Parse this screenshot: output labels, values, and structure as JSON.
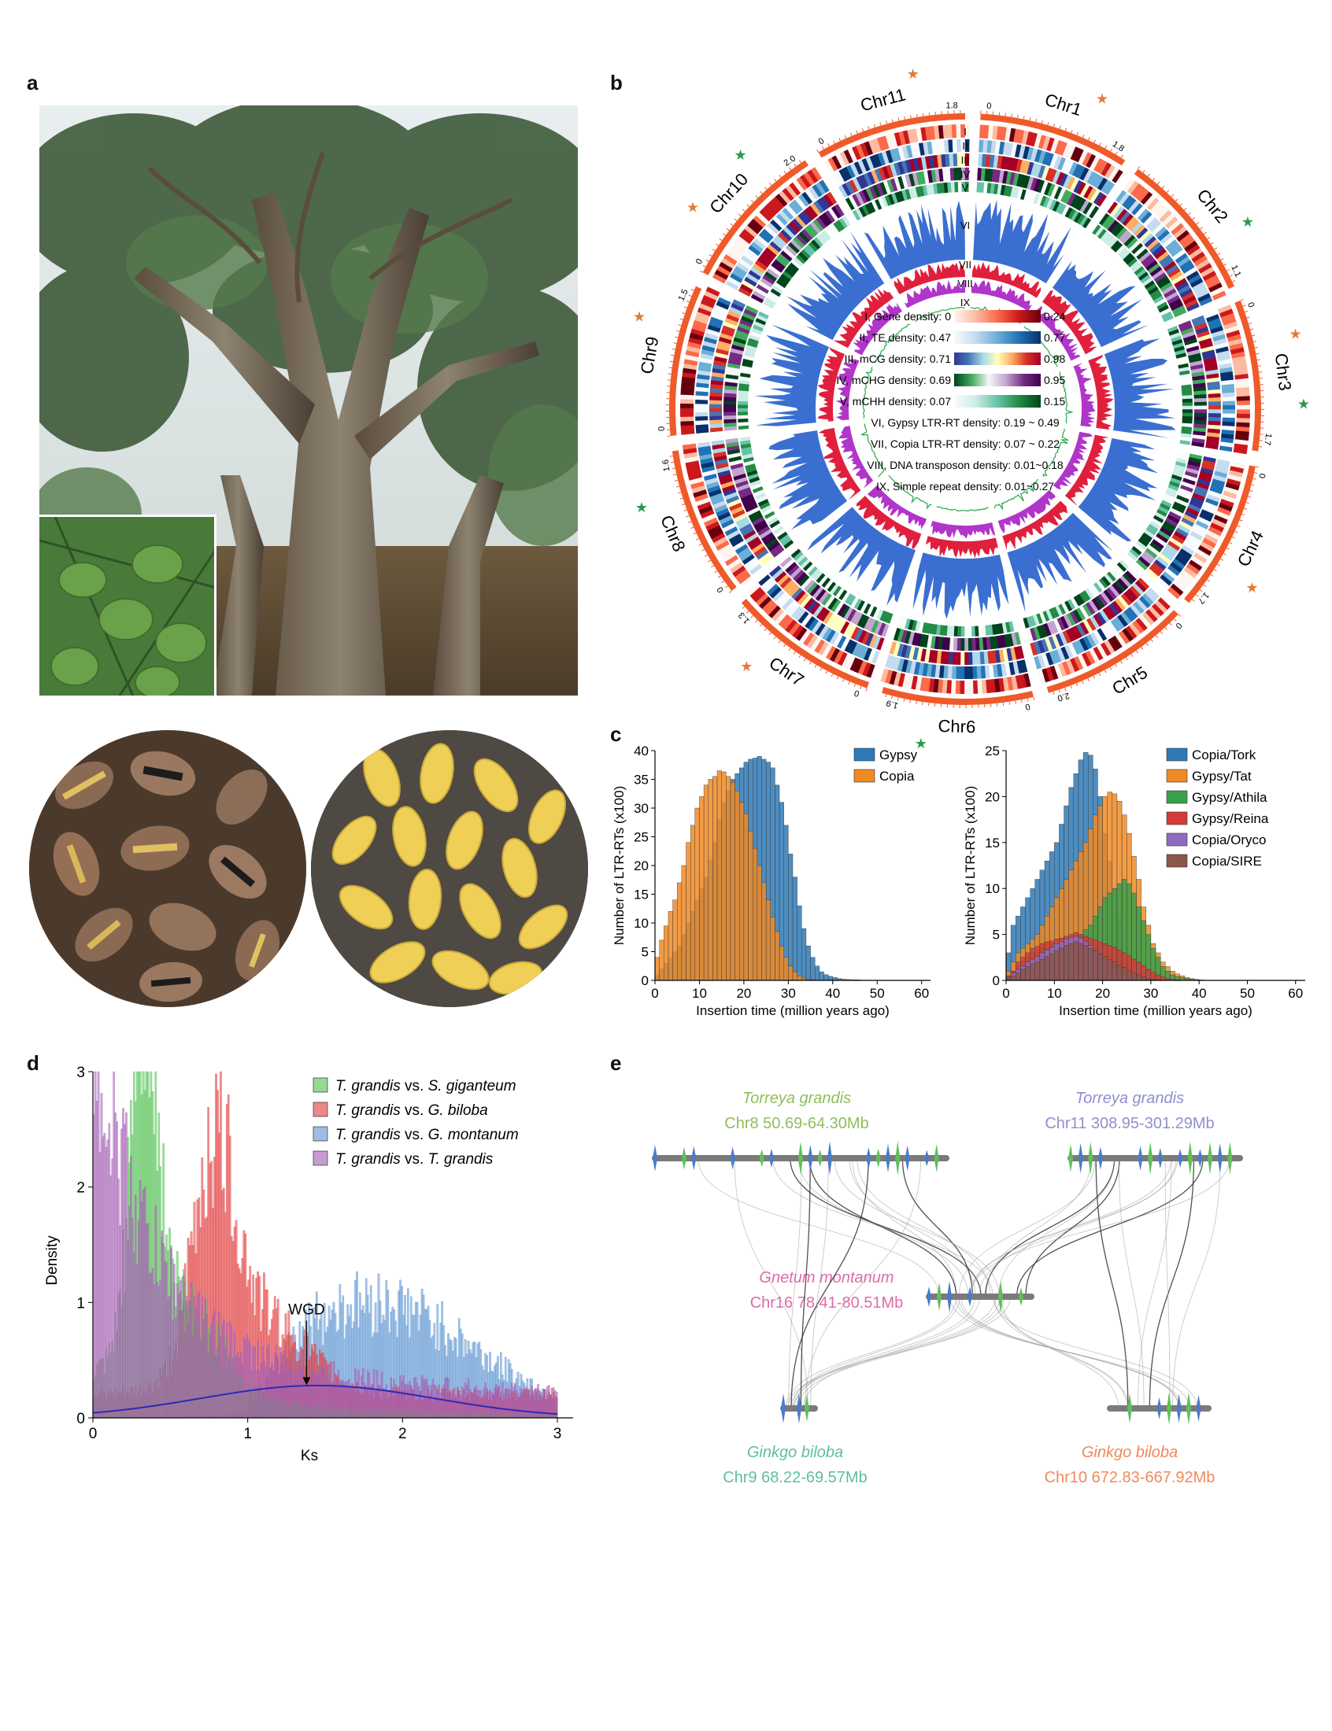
{
  "panels": {
    "a": "a",
    "b": "b",
    "c": "c",
    "d": "d",
    "e": "e"
  },
  "b": {
    "chromosomes": [
      {
        "name": "Chr1",
        "start": "0",
        "end": "1.8",
        "star": "orange"
      },
      {
        "name": "Chr2",
        "start": "",
        "end": "1.1",
        "star": "green"
      },
      {
        "name": "Chr3",
        "start": "0",
        "end": "1.7",
        "star": "both"
      },
      {
        "name": "Chr4",
        "start": "0",
        "end": "1.7",
        "star": "orange"
      },
      {
        "name": "Chr5",
        "start": "0",
        "end": "2.0",
        "star": "none"
      },
      {
        "name": "Chr6",
        "start": "0",
        "end": "1.9",
        "star": "green"
      },
      {
        "name": "Chr7",
        "start": "0",
        "end": "1.3",
        "star": "orange"
      },
      {
        "name": "Chr8",
        "start": "0",
        "end": "1.6",
        "star": "green"
      },
      {
        "name": "Chr9",
        "start": "0",
        "end": "1.5",
        "star": "orange"
      },
      {
        "name": "Chr10",
        "start": "0",
        "end": "2.0",
        "star": "both"
      },
      {
        "name": "Chr11",
        "start": "0",
        "end": "1.8",
        "star": "orange"
      }
    ],
    "track_numerals": [
      "I",
      "II",
      "III",
      "IV",
      "V",
      "VI",
      "VII",
      "VIII",
      "IX"
    ],
    "legend": [
      {
        "label": "I, Gene density: 0",
        "max": "0.24",
        "colors": [
          "#fff5f0",
          "#fcbba1",
          "#fb6a4a",
          "#cb181d",
          "#67000d"
        ]
      },
      {
        "label": "II, TE density: 0.47",
        "max": "0.77",
        "colors": [
          "#f7fbff",
          "#c6dbef",
          "#6baed6",
          "#2171b5",
          "#08306b"
        ]
      },
      {
        "label": "III, mCG density: 0.71",
        "max": "0.98",
        "colors": [
          "#313695",
          "#4575b4",
          "#abd9e9",
          "#ffffbf",
          "#fdae61",
          "#d73027",
          "#a50026"
        ]
      },
      {
        "label": "IV, mCHG density: 0.69",
        "max": "0.95",
        "colors": [
          "#00441b",
          "#41ab5d",
          "#f7f7f7",
          "#c2a5cf",
          "#762a83",
          "#40004b"
        ]
      },
      {
        "label": "V, mCHH density: 0.07",
        "max": "0.15",
        "colors": [
          "#f7fcfd",
          "#ccece6",
          "#66c2a4",
          "#238b45",
          "#00441b"
        ]
      }
    ],
    "legend_lines": [
      "VI, Gypsy LTR-RT density: 0.19 ~ 0.49",
      "VII, Copia LTR-RT density: 0.07 ~ 0.22",
      "VIII, DNA transposon density: 0.01~0.18",
      "IX, Simple repeat density: 0.01~0.27"
    ],
    "colors": {
      "chrom": "#ef5a2a",
      "gypsy": "#3a6fd1",
      "copia": "#e01f3d",
      "dna": "#b035c9",
      "simple": "#2aa84a",
      "star_orange": "#e07b39",
      "star_green": "#2a9a48"
    }
  },
  "chart_data": [
    {
      "type": "bar",
      "panel": "c-left",
      "xlabel": "Insertion time (million years ago)",
      "ylabel": "Number of LTR-RTs (x100)",
      "xlim": [
        0,
        62
      ],
      "ylim": [
        0,
        40
      ],
      "xticks": [
        0,
        10,
        20,
        30,
        40,
        50,
        60
      ],
      "yticks": [
        0,
        5,
        10,
        15,
        20,
        25,
        30,
        35,
        40
      ],
      "bin_width": 1,
      "series": [
        {
          "name": "Gypsy",
          "color": "#2f79b5",
          "values": [
            1,
            2,
            3,
            4,
            5,
            6,
            8,
            10,
            12,
            14,
            16,
            18,
            21,
            24,
            28,
            31,
            33,
            35,
            36,
            37,
            38,
            38.5,
            38.7,
            39,
            38.5,
            38,
            37,
            34,
            31,
            27,
            22,
            18,
            13,
            9,
            6,
            4,
            2.5,
            1.5,
            1,
            0.7,
            0.5,
            0.3,
            0.2,
            0.15,
            0.1,
            0.1,
            0.05,
            0.05,
            0.03,
            0.02,
            0.01
          ]
        },
        {
          "name": "Copia",
          "color": "#f08a24",
          "values": [
            4,
            7,
            9.5,
            12,
            14,
            17,
            20,
            24,
            27,
            30,
            32,
            34,
            35,
            35.5,
            36.5,
            36.3,
            35.5,
            34.5,
            33,
            31,
            29,
            26,
            23,
            20,
            17,
            14,
            11,
            8.5,
            6,
            4,
            2.5,
            1.5,
            0.8,
            0.4,
            0.2,
            0.1,
            0.05,
            0.02,
            0.01,
            0,
            0,
            0,
            0,
            0,
            0,
            0,
            0,
            0,
            0,
            0,
            0
          ]
        }
      ]
    },
    {
      "type": "bar",
      "panel": "c-right",
      "xlabel": "Insertion time (million years ago)",
      "ylabel": "Number of LTR-RTs (x100)",
      "xlim": [
        0,
        62
      ],
      "ylim": [
        0,
        25
      ],
      "xticks": [
        0,
        10,
        20,
        30,
        40,
        50,
        60
      ],
      "yticks": [
        0,
        5,
        10,
        15,
        20,
        25
      ],
      "bin_width": 1,
      "series": [
        {
          "name": "Copia/Tork",
          "color": "#2f79b5",
          "values": [
            3,
            6,
            7,
            8,
            9,
            10,
            11,
            12,
            13,
            14,
            15,
            17,
            19,
            21,
            22.5,
            24,
            24.8,
            24.5,
            23,
            20,
            16,
            13,
            10,
            7,
            5,
            3.5,
            2.5,
            1.5,
            1,
            0.6,
            0.3,
            0.2,
            0.1,
            0.05,
            0,
            0,
            0,
            0,
            0,
            0,
            0,
            0,
            0,
            0,
            0,
            0,
            0,
            0,
            0,
            0,
            0
          ]
        },
        {
          "name": "Gypsy/Tat",
          "color": "#f08a24",
          "values": [
            1,
            2,
            3,
            3.5,
            4,
            4.5,
            5,
            6,
            7,
            8,
            9,
            10,
            11,
            12,
            13,
            14,
            15,
            16.5,
            18,
            19,
            20,
            20.5,
            20.3,
            19.5,
            18,
            16,
            13.5,
            11,
            8,
            6,
            4,
            3,
            2,
            1.5,
            1,
            0.7,
            0.5,
            0.3,
            0.2,
            0.1,
            0.05,
            0,
            0,
            0,
            0,
            0,
            0,
            0,
            0,
            0,
            0
          ]
        },
        {
          "name": "Gypsy/Athila",
          "color": "#3aa04a",
          "values": [
            0.5,
            1,
            1.5,
            2,
            2.5,
            3,
            3,
            3.5,
            3.5,
            4,
            4,
            4,
            4,
            4,
            4.5,
            5,
            5.5,
            6,
            7,
            8,
            9,
            9.5,
            10,
            10.5,
            11,
            10.5,
            9.5,
            8,
            6.5,
            5,
            3.5,
            2.5,
            1.5,
            1,
            0.6,
            0.4,
            0.3,
            0.2,
            0.1,
            0.05,
            0,
            0,
            0,
            0,
            0,
            0,
            0,
            0,
            0,
            0,
            0
          ]
        },
        {
          "name": "Gypsy/Reina",
          "color": "#d33b3b",
          "values": [
            0.5,
            1,
            2,
            2.5,
            3,
            3.5,
            3.7,
            4,
            4.2,
            4.3,
            4.5,
            4.6,
            4.8,
            5,
            5.2,
            5,
            4.8,
            4.6,
            4.4,
            4.2,
            4,
            3.8,
            3.6,
            3.3,
            3,
            2.7,
            2.3,
            2,
            1.6,
            1.2,
            0.9,
            0.6,
            0.4,
            0.2,
            0.1,
            0.05,
            0,
            0,
            0,
            0,
            0,
            0,
            0,
            0,
            0,
            0,
            0,
            0,
            0,
            0,
            0
          ]
        },
        {
          "name": "Copia/Oryco",
          "color": "#8e6bbf",
          "values": [
            0.3,
            0.8,
            1.2,
            1.6,
            2,
            2.3,
            2.6,
            3,
            3.3,
            3.6,
            4,
            4.2,
            4.5,
            4.7,
            4.8,
            4.6,
            4.2,
            3.8,
            3.3,
            2.8,
            2.3,
            1.8,
            1.4,
            1,
            0.7,
            0.5,
            0.3,
            0.2,
            0.1,
            0.05,
            0,
            0,
            0,
            0,
            0,
            0,
            0,
            0,
            0,
            0,
            0,
            0,
            0,
            0,
            0,
            0,
            0,
            0,
            0,
            0,
            0
          ]
        },
        {
          "name": "Copia/SIRE",
          "color": "#8c564b",
          "values": [
            0.2,
            0.5,
            0.8,
            1.2,
            1.5,
            1.8,
            2,
            2.3,
            2.6,
            2.9,
            3.2,
            3.5,
            3.8,
            4,
            4.2,
            4,
            3.8,
            3.5,
            3.2,
            2.9,
            2.6,
            2.3,
            2,
            1.7,
            1.4,
            1.1,
            0.8,
            0.6,
            0.4,
            0.2,
            0.1,
            0.05,
            0,
            0,
            0,
            0,
            0,
            0,
            0,
            0,
            0,
            0,
            0,
            0,
            0,
            0,
            0,
            0,
            0,
            0,
            0
          ]
        }
      ]
    },
    {
      "type": "bar",
      "panel": "d",
      "xlabel": "Ks",
      "ylabel": "Density",
      "xlim": [
        0,
        3
      ],
      "ylim": [
        0,
        3
      ],
      "xticks": [
        0,
        1,
        2,
        3
      ],
      "yticks": [
        0,
        1,
        2,
        3
      ],
      "annotation": {
        "text": "WGD",
        "x": 1.38,
        "y": 0.27
      },
      "fit_curve": {
        "color": "#2a2ab8",
        "mean": 1.45,
        "sd": 0.75,
        "peak": 0.28
      },
      "series": [
        {
          "name": "T. grandis vs. S. giganteum",
          "color": "#4fbf4f",
          "peak_x": 0.33,
          "peak_y": 3.05
        },
        {
          "name": "T. grandis vs. G. biloba",
          "color": "#e0393b",
          "peak_x": 0.78,
          "peak_y": 1.8
        },
        {
          "name": "T. grandis vs. G. montanum",
          "color": "#5b93cf",
          "peak_x": 1.8,
          "peak_y": 1.05
        },
        {
          "name": "T. grandis vs. T. grandis",
          "color": "#a25bb2",
          "peak_x": 0.0,
          "peak_y": 2.7
        }
      ]
    }
  ],
  "c_legend_left": [
    {
      "name": "Gypsy",
      "color": "#2f79b5"
    },
    {
      "name": "Copia",
      "color": "#f08a24"
    }
  ],
  "d_legend": [
    {
      "a": "T. grandis",
      "vs": " vs. ",
      "b": "S. giganteum",
      "color": "#4fbf4f"
    },
    {
      "a": "T. grandis",
      "vs": " vs. ",
      "b": "G. biloba",
      "color": "#e0393b"
    },
    {
      "a": "T. grandis",
      "vs": " vs. ",
      "b": "G. montanum",
      "color": "#5b93cf"
    },
    {
      "a": "T. grandis",
      "vs": " vs. ",
      "b": "T. grandis",
      "color": "#a25bb2"
    }
  ],
  "e": {
    "blocks": [
      {
        "species": "Torreya grandis",
        "region": "Chr8 50.69-64.30Mb",
        "color": "#8fbf5a"
      },
      {
        "species": "Torreya grandis",
        "region": "Chr11 308.95-301.29Mb",
        "color": "#8f8fcf"
      },
      {
        "species": "Gnetum montanum",
        "region": "Chr16 78.41-80.51Mb",
        "color": "#e06aa8"
      },
      {
        "species": "Ginkgo biloba",
        "region": "Chr9 68.22-69.57Mb",
        "color": "#5fbf9f"
      },
      {
        "species": "Ginkgo biloba",
        "region": "Chr10 672.83-667.92Mb",
        "color": "#f08a5a"
      }
    ]
  }
}
